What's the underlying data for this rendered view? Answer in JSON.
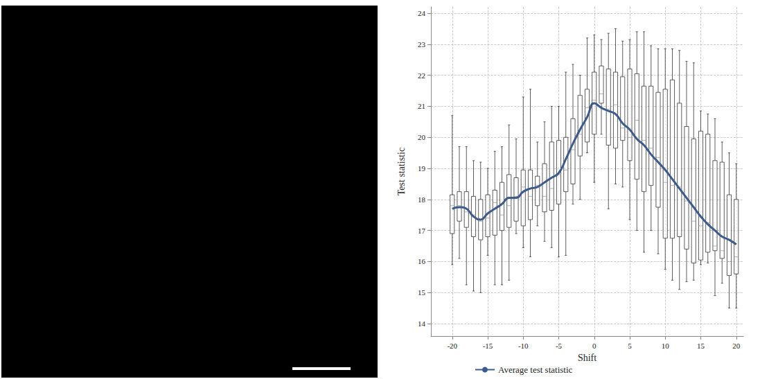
{
  "chart_data": {
    "type": "boxplot",
    "xlabel": "Shift",
    "ylabel": "Test statistic",
    "x": [
      -20,
      -19,
      -18,
      -17,
      -16,
      -15,
      -14,
      -13,
      -12,
      -11,
      -10,
      -9,
      -8,
      -7,
      -6,
      -5,
      -4,
      -3,
      -2,
      -1,
      0,
      1,
      2,
      3,
      4,
      5,
      6,
      7,
      8,
      9,
      10,
      11,
      12,
      13,
      14,
      15,
      16,
      17,
      18,
      19,
      20
    ],
    "series": [
      {
        "type": "boxplot",
        "color": "#333333",
        "values": [
          [
            15.9,
            16.9,
            17.8,
            18.15,
            20.7
          ],
          [
            16.1,
            17.3,
            17.8,
            18.25,
            19.7
          ],
          [
            15.25,
            17.1,
            17.6,
            18.25,
            19.7
          ],
          [
            15.05,
            16.8,
            17.5,
            18.1,
            19.25
          ],
          [
            15.0,
            16.7,
            17.3,
            18.0,
            19.2
          ],
          [
            16.2,
            16.8,
            17.4,
            18.15,
            19.0
          ],
          [
            15.25,
            16.85,
            17.9,
            18.3,
            19.55
          ],
          [
            15.25,
            17.0,
            17.5,
            18.55,
            19.7
          ],
          [
            15.4,
            17.1,
            17.8,
            18.8,
            20.4
          ],
          [
            16.9,
            17.3,
            18.1,
            18.7,
            19.95
          ],
          [
            16.45,
            17.15,
            18.4,
            18.95,
            21.3
          ],
          [
            16.15,
            17.35,
            18.1,
            18.95,
            21.55
          ],
          [
            17.15,
            17.8,
            18.45,
            18.75,
            19.85
          ],
          [
            16.65,
            17.6,
            18.1,
            19.15,
            20.5
          ],
          [
            16.45,
            17.65,
            18.35,
            19.85,
            21.0
          ],
          [
            16.15,
            17.85,
            18.8,
            19.9,
            21.0
          ],
          [
            16.2,
            18.25,
            18.95,
            20.0,
            22.1
          ],
          [
            17.85,
            18.5,
            19.6,
            20.6,
            22.35
          ],
          [
            18.0,
            19.4,
            20.1,
            21.35,
            22.0
          ],
          [
            19.5,
            19.85,
            20.95,
            21.55,
            23.2
          ],
          [
            18.55,
            20.1,
            21.2,
            22.1,
            23.3
          ],
          [
            20.1,
            21.1,
            21.4,
            22.3,
            23.15
          ],
          [
            17.7,
            19.75,
            20.9,
            22.2,
            23.35
          ],
          [
            18.5,
            19.65,
            21.05,
            22.1,
            23.5
          ],
          [
            18.4,
            19.9,
            20.3,
            21.95,
            23.1
          ],
          [
            17.35,
            19.25,
            20.0,
            22.2,
            23.15
          ],
          [
            17.0,
            18.65,
            20.55,
            22.05,
            23.4
          ],
          [
            16.3,
            18.25,
            19.9,
            21.65,
            23.4
          ],
          [
            17.0,
            18.45,
            19.65,
            21.65,
            22.95
          ],
          [
            16.25,
            17.75,
            19.35,
            21.45,
            22.85
          ],
          [
            15.75,
            16.75,
            18.55,
            21.55,
            22.85
          ],
          [
            15.4,
            16.75,
            18.45,
            21.85,
            22.85
          ],
          [
            15.1,
            16.8,
            18.4,
            21.1,
            22.8
          ],
          [
            15.35,
            16.4,
            17.95,
            20.35,
            22.45
          ],
          [
            15.4,
            15.95,
            17.3,
            19.95,
            22.4
          ],
          [
            15.9,
            16.05,
            17.15,
            20.2,
            20.85
          ],
          [
            15.95,
            16.3,
            17.25,
            20.1,
            20.75
          ],
          [
            14.9,
            16.35,
            16.5,
            19.25,
            20.6
          ],
          [
            15.3,
            16.1,
            16.35,
            19.2,
            19.85
          ],
          [
            14.5,
            15.55,
            16.0,
            18.15,
            19.5
          ],
          [
            14.5,
            15.6,
            16.15,
            18.0,
            19.15
          ]
        ]
      },
      {
        "name": "Average test statistic",
        "type": "line",
        "color": "#3d5a8c",
        "values": [
          17.7,
          17.75,
          17.7,
          17.45,
          17.35,
          17.55,
          17.7,
          17.85,
          18.05,
          18.05,
          18.25,
          18.35,
          18.4,
          18.55,
          18.7,
          18.85,
          19.3,
          19.8,
          20.25,
          20.65,
          21.1,
          20.95,
          20.85,
          20.75,
          20.45,
          20.25,
          19.95,
          19.75,
          19.45,
          19.2,
          18.95,
          18.65,
          18.35,
          18.05,
          17.75,
          17.45,
          17.2,
          17.0,
          16.8,
          16.7,
          16.55
        ]
      }
    ],
    "xlim": [
      -23,
      21
    ],
    "xticks": [
      -20,
      -15,
      -10,
      -5,
      0,
      5,
      10,
      15,
      20
    ],
    "ylim": [
      13.6,
      24.2
    ],
    "yticks": [
      14,
      15,
      16,
      17,
      18,
      19,
      20,
      21,
      22,
      23,
      24
    ],
    "grid": true,
    "legend": "bottom"
  }
}
